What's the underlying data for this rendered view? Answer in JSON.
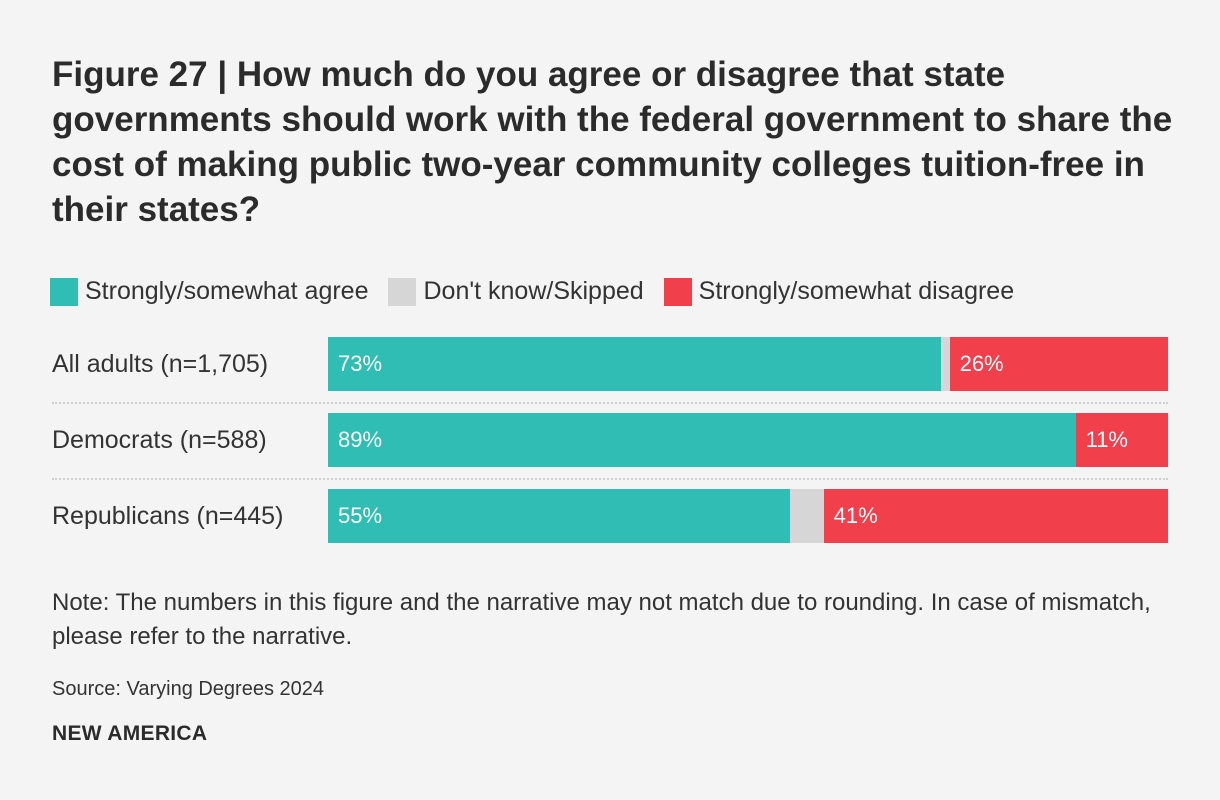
{
  "title": "Figure 27 | How much do you agree or disagree that state governments should work with the federal government to share the cost of making public two-year community colleges tuition-free in their states?",
  "legend": [
    {
      "label": "Strongly/somewhat agree",
      "color": "#2fbdb4"
    },
    {
      "label": "Don't know/Skipped",
      "color": "#d6d6d6"
    },
    {
      "label": "Strongly/somewhat disagree",
      "color": "#f23f4c"
    }
  ],
  "chart_data": {
    "type": "bar",
    "orientation": "horizontal",
    "stacked": true,
    "title": "Figure 27 | How much do you agree or disagree that state governments should work with the federal government to share the cost of making public two-year community colleges tuition-free in their states?",
    "categories": [
      "All adults (n=1,705)",
      "Democrats (n=588)",
      "Republicans (n=445)"
    ],
    "series": [
      {
        "name": "Strongly/somewhat agree",
        "values": [
          73,
          89,
          55
        ],
        "labels": [
          "73%",
          "89%",
          "55%"
        ],
        "color": "#2fbdb4"
      },
      {
        "name": "Don't know/Skipped",
        "values": [
          1,
          0,
          4
        ],
        "labels": [
          "",
          "",
          ""
        ],
        "color": "#d6d6d6"
      },
      {
        "name": "Strongly/somewhat disagree",
        "values": [
          26,
          11,
          41
        ],
        "labels": [
          "26%",
          "11%",
          "41%"
        ],
        "color": "#f23f4c"
      }
    ],
    "xlim": [
      0,
      100
    ],
    "legend_position": "top-left"
  },
  "note": "Note: The numbers in this figure and the narrative may not match due to rounding. In case of mismatch, please refer to the narrative.",
  "source": "Source: Varying Degrees 2024",
  "brand": "NEW AMERICA"
}
